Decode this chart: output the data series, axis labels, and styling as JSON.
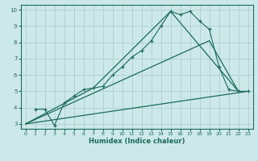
{
  "xlabel": "Humidex (Indice chaleur)",
  "xlim": [
    -0.5,
    23.5
  ],
  "ylim": [
    2.7,
    10.3
  ],
  "xticks": [
    0,
    1,
    2,
    3,
    4,
    5,
    6,
    7,
    8,
    9,
    10,
    11,
    12,
    13,
    14,
    15,
    16,
    17,
    18,
    19,
    20,
    21,
    22,
    23
  ],
  "yticks": [
    3,
    4,
    5,
    6,
    7,
    8,
    9,
    10
  ],
  "background_color": "#cde8e8",
  "grid_color": "#aecece",
  "line_color": "#1a6b5a",
  "line1_x": [
    1,
    2,
    3,
    4,
    5,
    6,
    7,
    8,
    9,
    10,
    11,
    12,
    13,
    14,
    15,
    16,
    17,
    18,
    19,
    20,
    21,
    22,
    23
  ],
  "line1_y": [
    3.9,
    3.9,
    2.9,
    4.3,
    4.7,
    5.1,
    5.2,
    5.3,
    6.0,
    6.5,
    7.1,
    7.5,
    8.1,
    9.0,
    9.9,
    9.7,
    9.9,
    9.3,
    8.8,
    6.5,
    5.1,
    5.0,
    5.0
  ],
  "line2_x": [
    0,
    7,
    15,
    22
  ],
  "line2_y": [
    3.0,
    5.2,
    9.9,
    5.0
  ],
  "line3_x": [
    0,
    19,
    22
  ],
  "line3_y": [
    3.0,
    8.1,
    5.0
  ],
  "line4_x": [
    0,
    23
  ],
  "line4_y": [
    3.0,
    5.0
  ]
}
